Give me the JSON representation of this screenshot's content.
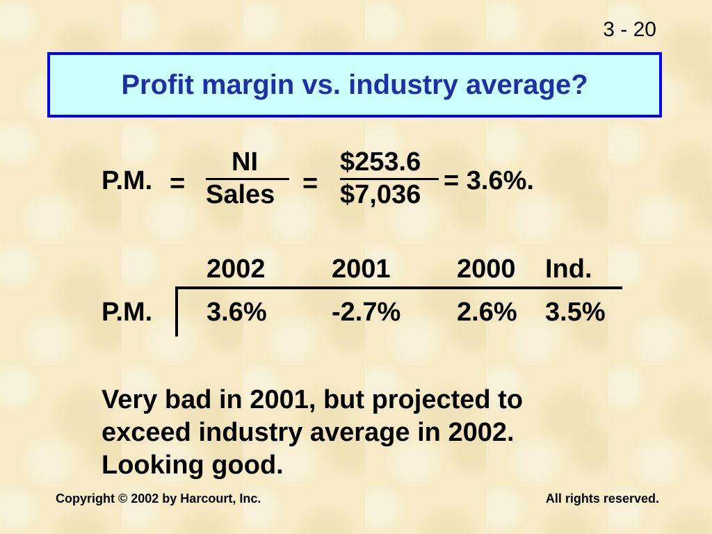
{
  "slide_number": "3 - 20",
  "title": "Profit margin vs. industry average?",
  "formula": {
    "label": "P.M.",
    "eq1": "=",
    "numerator": "NI",
    "denominator": "Sales",
    "eq2": "=",
    "num_value": "$253.6",
    "den_value": "$7,036",
    "result": "= 3.6%."
  },
  "table": {
    "headers": [
      "2002",
      "2001",
      "2000",
      "Ind."
    ],
    "row_label": "P.M.",
    "values": [
      "3.6%",
      "-2.7%",
      "2.6%",
      "3.5%"
    ]
  },
  "body_lines": [
    "Very bad in 2001, but projected to",
    "exceed industry average in 2002.",
    "Looking good."
  ],
  "footer": {
    "left": "Copyright © 2002 by Harcourt, Inc.",
    "right": "All rights reserved."
  },
  "colors": {
    "title_bg": "#ccffff",
    "title_border": "#0000ff",
    "title_text": "#1f2fa8",
    "background": "#f6ebc6"
  }
}
